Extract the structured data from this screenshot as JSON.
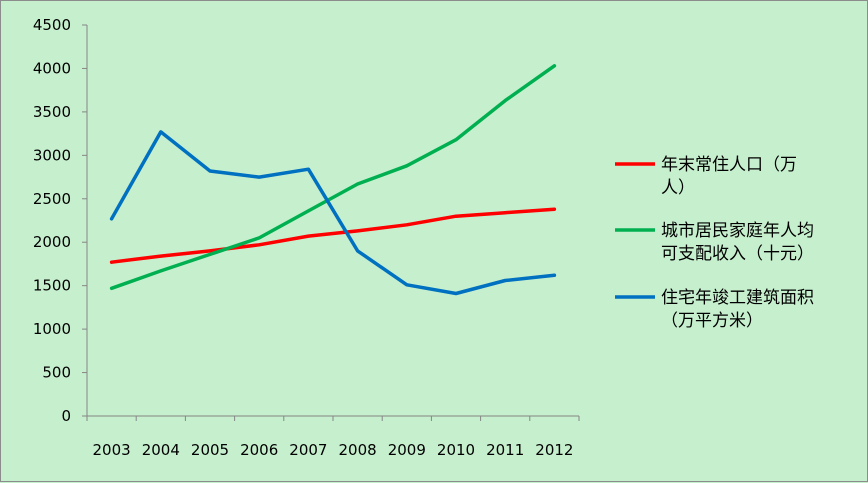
{
  "chart_data": {
    "type": "line",
    "categories": [
      "2003",
      "2004",
      "2005",
      "2006",
      "2007",
      "2008",
      "2009",
      "2010",
      "2011",
      "2012"
    ],
    "ylim": [
      0,
      4500
    ],
    "yticks": [
      "0",
      "500",
      "1000",
      "1500",
      "2000",
      "2500",
      "3000",
      "3500",
      "4000",
      "4500"
    ],
    "grid": false,
    "legend_position": "right",
    "series": [
      {
        "name_lines": [
          "年末常住人口（万",
          "人）"
        ],
        "color": "#ff0000",
        "values": [
          1770,
          1840,
          1900,
          1970,
          2070,
          2130,
          2200,
          2300,
          2340,
          2380
        ]
      },
      {
        "name_lines": [
          "城市居民家庭年人均",
          "可支配收入（十元）"
        ],
        "color": "#00b050",
        "values": [
          1470,
          1670,
          1860,
          2050,
          2360,
          2670,
          2880,
          3180,
          3630,
          4030
        ]
      },
      {
        "name_lines": [
          "住宅年竣工建筑面积",
          "（万平方米）"
        ],
        "color": "#0070c0",
        "values": [
          2270,
          3270,
          2820,
          2750,
          2840,
          1900,
          1510,
          1410,
          1560,
          1620
        ]
      }
    ]
  }
}
